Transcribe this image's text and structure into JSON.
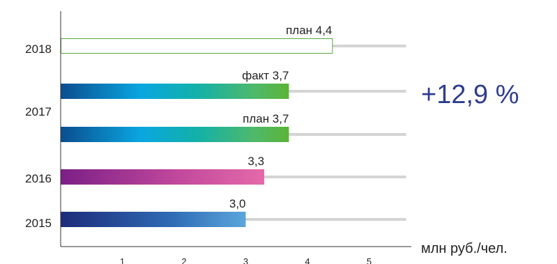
{
  "chart_data": {
    "type": "bar",
    "orientation": "horizontal",
    "unit": "млн руб./чел.",
    "xlim": [
      0,
      5.6
    ],
    "xticks": [
      "1",
      "2",
      "3",
      "4",
      "5"
    ],
    "track_max": 5.6,
    "categories": [
      "2018",
      "2017",
      "2016",
      "2015"
    ],
    "bars": [
      {
        "year": "2018",
        "label": "план 4,4",
        "value": 4.4,
        "style": "outline"
      },
      {
        "year": "2017",
        "label": "факт 3,7",
        "value": 3.7,
        "style": "blue-green"
      },
      {
        "year": "2017",
        "label": "план 3,7",
        "value": 3.7,
        "style": "blue-green"
      },
      {
        "year": "2016",
        "label": "3,3",
        "value": 3.3,
        "style": "purple-pink"
      },
      {
        "year": "2015",
        "label": "3,0",
        "value": 3.0,
        "style": "navy-blue"
      }
    ],
    "annotation": "+12,9 %",
    "colors": {
      "axis": "#333333",
      "track": "#d4d4d4",
      "outline": "#5aaa3c",
      "annotation": "#2e3d8f",
      "blue_green": [
        "#0b4d8f",
        "#0aa6e0",
        "#13b1a8",
        "#4fb96a",
        "#5ab435"
      ],
      "purple_pink": [
        "#7b1f86",
        "#c44a9e",
        "#e46aa9"
      ],
      "navy_blue": [
        "#1d2c7a",
        "#2f6bb5",
        "#5aa6dc"
      ]
    }
  }
}
